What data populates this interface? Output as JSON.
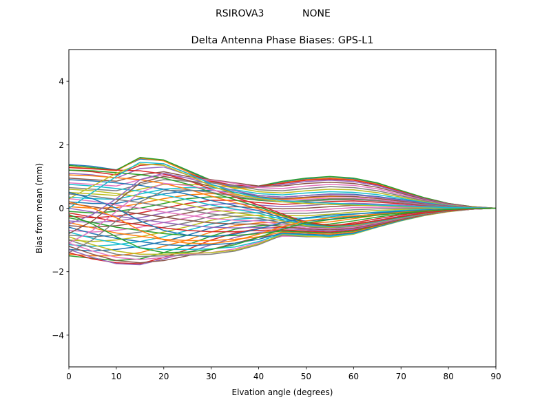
{
  "figure": {
    "suptitle_left": "RSIROVA3",
    "suptitle_right": "NONE"
  },
  "chart_data": {
    "type": "line",
    "title": "Delta Antenna Phase Biases: GPS-L1",
    "xlabel": "Elvation angle (degrees)",
    "ylabel": "Bias from mean (mm)",
    "xlim": [
      0,
      90
    ],
    "ylim": [
      -5,
      5
    ],
    "xticks": [
      0,
      10,
      20,
      30,
      40,
      50,
      60,
      70,
      80,
      90
    ],
    "yticks": [
      -4,
      -2,
      0,
      2,
      4
    ],
    "ytick_labels": [
      "−4",
      "−2",
      "0",
      "2",
      "4"
    ],
    "grid": false,
    "legend": "none",
    "x": [
      0,
      5,
      10,
      15,
      20,
      25,
      30,
      35,
      40,
      45,
      50,
      55,
      60,
      65,
      70,
      75,
      80,
      85,
      90
    ],
    "colors": [
      "#1f77b4",
      "#ff7f0e",
      "#2ca02c",
      "#d62728",
      "#9467bd",
      "#8c564b",
      "#e377c2",
      "#7f7f7f",
      "#bcbd22",
      "#17becf"
    ],
    "series": [
      {
        "values": [
          1.38,
          1.32,
          1.21,
          1.55,
          1.5,
          1.18,
          0.85,
          0.65,
          0.68,
          0.82,
          0.92,
          0.96,
          0.92,
          0.78,
          0.55,
          0.32,
          0.15,
          0.05,
          0.0
        ]
      },
      {
        "values": [
          1.3,
          1.25,
          1.18,
          1.58,
          1.49,
          1.15,
          0.82,
          0.62,
          0.66,
          0.8,
          0.9,
          0.95,
          0.9,
          0.76,
          0.53,
          0.31,
          0.14,
          0.05,
          0.0
        ]
      },
      {
        "values": [
          1.35,
          1.28,
          1.2,
          1.6,
          1.52,
          1.2,
          0.88,
          0.68,
          0.7,
          0.85,
          0.95,
          1.0,
          0.95,
          0.8,
          0.56,
          0.33,
          0.15,
          0.05,
          0.0
        ]
      },
      {
        "values": [
          1.2,
          1.15,
          1.05,
          1.35,
          1.4,
          1.1,
          0.85,
          0.72,
          0.7,
          0.78,
          0.88,
          0.92,
          0.88,
          0.74,
          0.52,
          0.3,
          0.14,
          0.04,
          0.0
        ]
      },
      {
        "values": [
          1.1,
          1.05,
          0.95,
          1.25,
          1.3,
          1.05,
          0.8,
          0.7,
          0.66,
          0.74,
          0.84,
          0.88,
          0.84,
          0.71,
          0.5,
          0.29,
          0.13,
          0.04,
          0.0
        ]
      },
      {
        "values": [
          0.95,
          0.9,
          0.85,
          1.05,
          1.15,
          1.0,
          0.9,
          0.8,
          0.7,
          0.7,
          0.78,
          0.82,
          0.78,
          0.66,
          0.47,
          0.27,
          0.12,
          0.04,
          0.0
        ]
      },
      {
        "values": [
          0.8,
          0.75,
          0.7,
          0.9,
          1.05,
          0.95,
          0.88,
          0.78,
          0.65,
          0.62,
          0.7,
          0.75,
          0.72,
          0.61,
          0.43,
          0.25,
          0.11,
          0.03,
          0.0
        ]
      },
      {
        "values": [
          0.65,
          0.6,
          0.55,
          0.75,
          0.9,
          0.85,
          0.8,
          0.72,
          0.58,
          0.55,
          0.62,
          0.68,
          0.65,
          0.55,
          0.39,
          0.23,
          0.1,
          0.03,
          0.0
        ]
      },
      {
        "values": [
          0.5,
          0.45,
          0.4,
          0.6,
          0.75,
          0.75,
          0.72,
          0.65,
          0.52,
          0.48,
          0.55,
          0.6,
          0.58,
          0.49,
          0.35,
          0.2,
          0.09,
          0.03,
          0.0
        ]
      },
      {
        "values": [
          0.35,
          0.3,
          0.28,
          0.45,
          0.6,
          0.65,
          0.64,
          0.58,
          0.46,
          0.42,
          0.48,
          0.52,
          0.5,
          0.43,
          0.31,
          0.18,
          0.08,
          0.02,
          0.0
        ]
      },
      {
        "values": [
          0.2,
          0.15,
          0.15,
          0.3,
          0.45,
          0.55,
          0.56,
          0.5,
          0.4,
          0.35,
          0.4,
          0.45,
          0.44,
          0.37,
          0.27,
          0.16,
          0.07,
          0.02,
          0.0
        ]
      },
      {
        "values": [
          0.05,
          0.0,
          0.02,
          0.15,
          0.3,
          0.42,
          0.46,
          0.42,
          0.32,
          0.28,
          0.32,
          0.37,
          0.37,
          0.31,
          0.22,
          0.13,
          0.06,
          0.02,
          0.0
        ]
      },
      {
        "values": [
          -0.1,
          -0.15,
          -0.1,
          0.0,
          0.15,
          0.3,
          0.36,
          0.34,
          0.25,
          0.2,
          0.24,
          0.29,
          0.3,
          0.25,
          0.18,
          0.11,
          0.05,
          0.01,
          0.0
        ]
      },
      {
        "values": [
          -0.25,
          -0.3,
          -0.25,
          -0.15,
          0.0,
          0.15,
          0.25,
          0.25,
          0.18,
          0.12,
          0.16,
          0.21,
          0.23,
          0.19,
          0.14,
          0.08,
          0.04,
          0.01,
          0.0
        ]
      },
      {
        "values": [
          -0.4,
          -0.45,
          -0.4,
          -0.3,
          -0.15,
          0.0,
          0.12,
          0.15,
          0.1,
          0.05,
          0.08,
          0.13,
          0.16,
          0.13,
          0.1,
          0.06,
          0.03,
          0.01,
          0.0
        ]
      },
      {
        "values": [
          -0.55,
          -0.6,
          -0.55,
          -0.45,
          -0.3,
          -0.15,
          0.0,
          0.05,
          0.02,
          -0.02,
          0.0,
          0.05,
          0.09,
          0.08,
          0.06,
          0.04,
          0.02,
          0.0,
          0.0
        ]
      },
      {
        "values": [
          -0.7,
          -0.75,
          -0.7,
          -0.6,
          -0.45,
          -0.3,
          -0.12,
          -0.05,
          -0.06,
          -0.09,
          -0.08,
          -0.03,
          0.02,
          0.03,
          0.03,
          0.02,
          0.01,
          0.0,
          0.0
        ]
      },
      {
        "values": [
          -0.85,
          -0.9,
          -0.85,
          -0.75,
          -0.6,
          -0.45,
          -0.25,
          -0.15,
          -0.14,
          -0.16,
          -0.16,
          -0.11,
          -0.05,
          -0.02,
          0.0,
          0.0,
          0.0,
          0.0,
          0.0
        ]
      },
      {
        "values": [
          -1.0,
          -1.05,
          -1.0,
          -0.9,
          -0.75,
          -0.58,
          -0.38,
          -0.25,
          -0.22,
          -0.23,
          -0.24,
          -0.19,
          -0.12,
          -0.07,
          -0.04,
          -0.02,
          -0.01,
          0.0,
          0.0
        ]
      },
      {
        "values": [
          -1.15,
          -1.2,
          -1.15,
          -1.05,
          -0.9,
          -0.7,
          -0.5,
          -0.35,
          -0.3,
          -0.3,
          -0.32,
          -0.27,
          -0.19,
          -0.12,
          -0.07,
          -0.04,
          -0.02,
          0.0,
          0.0
        ]
      },
      {
        "values": [
          -1.3,
          -1.35,
          -1.3,
          -1.2,
          -1.05,
          -0.85,
          -0.62,
          -0.45,
          -0.38,
          -0.37,
          -0.4,
          -0.35,
          -0.26,
          -0.17,
          -0.1,
          -0.06,
          -0.03,
          -0.01,
          0.0
        ]
      },
      {
        "values": [
          -1.45,
          -1.5,
          -1.5,
          -1.4,
          -1.2,
          -1.0,
          -0.75,
          -0.55,
          -0.46,
          -0.44,
          -0.48,
          -0.43,
          -0.33,
          -0.22,
          -0.14,
          -0.08,
          -0.04,
          -0.01,
          0.0
        ]
      },
      {
        "values": [
          -1.5,
          -1.58,
          -1.65,
          -1.6,
          -1.4,
          -1.15,
          -0.88,
          -0.66,
          -0.55,
          -0.52,
          -0.55,
          -0.5,
          -0.4,
          -0.28,
          -0.18,
          -0.1,
          -0.05,
          -0.02,
          0.0
        ]
      },
      {
        "values": [
          -1.4,
          -1.6,
          -1.72,
          -1.75,
          -1.55,
          -1.3,
          -1.0,
          -0.78,
          -0.64,
          -0.6,
          -0.63,
          -0.57,
          -0.46,
          -0.33,
          -0.21,
          -0.12,
          -0.06,
          -0.02,
          0.0
        ]
      },
      {
        "values": [
          -1.3,
          -1.55,
          -1.75,
          -1.78,
          -1.6,
          -1.4,
          -1.15,
          -0.92,
          -0.76,
          -0.7,
          -0.72,
          -0.66,
          -0.53,
          -0.38,
          -0.25,
          -0.14,
          -0.07,
          -0.02,
          0.0
        ]
      },
      {
        "values": [
          -1.2,
          -1.45,
          -1.65,
          -1.72,
          -1.65,
          -1.5,
          -1.3,
          -1.1,
          -0.92,
          -0.82,
          -0.82,
          -0.74,
          -0.6,
          -0.44,
          -0.29,
          -0.16,
          -0.08,
          -0.02,
          0.0
        ]
      },
      {
        "values": [
          -1.1,
          -1.35,
          -1.55,
          -1.62,
          -1.55,
          -1.45,
          -1.4,
          -1.28,
          -1.08,
          -0.88,
          -0.88,
          -0.82,
          -0.67,
          -0.49,
          -0.33,
          -0.19,
          -0.09,
          -0.03,
          0.0
        ]
      },
      {
        "values": [
          -1.0,
          -1.25,
          -1.45,
          -1.52,
          -1.5,
          -1.48,
          -1.45,
          -1.35,
          -1.15,
          -0.85,
          -0.9,
          -0.9,
          -0.75,
          -0.55,
          -0.37,
          -0.21,
          -0.1,
          -0.03,
          0.0
        ]
      },
      {
        "values": [
          -0.9,
          -1.15,
          -1.35,
          -1.45,
          -1.45,
          -1.42,
          -1.4,
          -1.32,
          -1.12,
          -0.82,
          -0.88,
          -0.92,
          -0.82,
          -0.6,
          -0.4,
          -0.23,
          -0.11,
          -0.03,
          0.0
        ]
      },
      {
        "values": [
          -0.75,
          -0.95,
          -1.1,
          -1.25,
          -1.3,
          -1.3,
          -1.28,
          -1.22,
          -1.05,
          -0.8,
          -0.85,
          -0.88,
          -0.8,
          -0.59,
          -0.39,
          -0.22,
          -0.1,
          -0.03,
          0.0
        ]
      },
      {
        "values": [
          -0.6,
          -0.8,
          -0.95,
          -1.05,
          -1.15,
          -1.18,
          -1.15,
          -1.1,
          -0.98,
          -0.78,
          -0.82,
          -0.85,
          -0.78,
          -0.58,
          -0.38,
          -0.21,
          -0.1,
          -0.03,
          0.0
        ]
      },
      {
        "values": [
          -0.45,
          -0.62,
          -0.78,
          -0.88,
          -0.98,
          -1.02,
          -1.02,
          -0.98,
          -0.9,
          -0.75,
          -0.78,
          -0.82,
          -0.75,
          -0.56,
          -0.37,
          -0.21,
          -0.1,
          -0.03,
          0.0
        ]
      },
      {
        "values": [
          -0.3,
          -0.45,
          -0.6,
          -0.7,
          -0.8,
          -0.86,
          -0.88,
          -0.86,
          -0.8,
          -0.72,
          -0.75,
          -0.78,
          -0.72,
          -0.54,
          -0.36,
          -0.2,
          -0.09,
          -0.03,
          0.0
        ]
      },
      {
        "values": [
          -0.15,
          -0.28,
          -0.42,
          -0.52,
          -0.62,
          -0.7,
          -0.74,
          -0.74,
          -0.7,
          -0.68,
          -0.72,
          -0.75,
          -0.69,
          -0.52,
          -0.35,
          -0.2,
          -0.09,
          -0.03,
          0.0
        ]
      },
      {
        "values": [
          0.0,
          -0.12,
          -0.25,
          -0.35,
          -0.45,
          -0.54,
          -0.6,
          -0.62,
          -0.6,
          -0.64,
          -0.68,
          -0.72,
          -0.66,
          -0.5,
          -0.34,
          -0.19,
          -0.09,
          -0.03,
          0.0
        ]
      },
      {
        "values": [
          0.15,
          0.05,
          -0.08,
          -0.18,
          -0.28,
          -0.38,
          -0.46,
          -0.5,
          -0.5,
          -0.58,
          -0.65,
          -0.68,
          -0.63,
          -0.48,
          -0.33,
          -0.19,
          -0.09,
          -0.03,
          0.0
        ]
      },
      {
        "values": [
          0.3,
          0.22,
          0.1,
          0.0,
          -0.12,
          -0.22,
          -0.32,
          -0.38,
          -0.4,
          -0.52,
          -0.62,
          -0.65,
          -0.6,
          -0.46,
          -0.32,
          -0.18,
          -0.08,
          -0.03,
          0.0
        ]
      },
      {
        "values": [
          0.45,
          0.38,
          0.28,
          0.18,
          0.06,
          -0.06,
          -0.18,
          -0.26,
          -0.32,
          -0.46,
          -0.58,
          -0.62,
          -0.57,
          -0.44,
          -0.31,
          -0.18,
          -0.08,
          -0.02,
          0.0
        ]
      },
      {
        "values": [
          0.6,
          0.55,
          0.46,
          0.36,
          0.24,
          0.1,
          -0.04,
          -0.14,
          -0.24,
          -0.4,
          -0.55,
          -0.6,
          -0.55,
          -0.43,
          -0.3,
          -0.17,
          -0.08,
          -0.02,
          0.0
        ]
      },
      {
        "values": [
          0.75,
          0.7,
          0.62,
          0.54,
          0.42,
          0.27,
          0.1,
          -0.03,
          -0.16,
          -0.35,
          -0.52,
          -0.58,
          -0.53,
          -0.42,
          -0.29,
          -0.17,
          -0.08,
          -0.02,
          0.0
        ]
      },
      {
        "values": [
          0.9,
          0.86,
          0.8,
          0.72,
          0.6,
          0.44,
          0.24,
          0.08,
          -0.08,
          -0.3,
          -0.5,
          -0.56,
          -0.52,
          -0.41,
          -0.28,
          -0.16,
          -0.07,
          -0.02,
          0.0
        ]
      },
      {
        "values": [
          1.05,
          1.02,
          0.96,
          0.9,
          0.78,
          0.6,
          0.38,
          0.18,
          -0.02,
          -0.25,
          -0.47,
          -0.55,
          -0.51,
          -0.4,
          -0.27,
          -0.16,
          -0.07,
          -0.02,
          0.0
        ]
      },
      {
        "values": [
          1.2,
          1.18,
          1.12,
          1.06,
          0.95,
          0.76,
          0.5,
          0.27,
          0.04,
          -0.22,
          -0.46,
          -0.55,
          -0.5,
          -0.39,
          -0.27,
          -0.15,
          -0.07,
          -0.02,
          0.0
        ]
      },
      {
        "values": [
          1.28,
          1.24,
          1.2,
          1.18,
          1.08,
          0.88,
          0.6,
          0.35,
          0.1,
          -0.18,
          -0.44,
          -0.54,
          -0.5,
          -0.39,
          -0.26,
          -0.15,
          -0.07,
          -0.02,
          0.0
        ]
      },
      {
        "values": [
          -0.5,
          -0.2,
          0.3,
          0.9,
          1.1,
          0.95,
          0.75,
          0.55,
          0.4,
          0.35,
          0.4,
          0.44,
          0.42,
          0.35,
          0.25,
          0.15,
          0.07,
          0.02,
          0.0
        ]
      },
      {
        "values": [
          -0.8,
          -0.4,
          0.2,
          0.8,
          1.0,
          0.88,
          0.68,
          0.5,
          0.36,
          0.3,
          0.35,
          0.39,
          0.37,
          0.31,
          0.22,
          0.13,
          0.06,
          0.02,
          0.0
        ]
      },
      {
        "values": [
          -1.1,
          -0.7,
          -0.1,
          0.5,
          0.78,
          0.72,
          0.58,
          0.44,
          0.32,
          0.25,
          0.28,
          0.32,
          0.32,
          0.27,
          0.19,
          0.11,
          0.05,
          0.01,
          0.0
        ]
      },
      {
        "values": [
          -1.4,
          -1.0,
          -0.4,
          0.2,
          0.55,
          0.58,
          0.5,
          0.38,
          0.27,
          0.2,
          0.22,
          0.26,
          0.27,
          0.23,
          0.17,
          0.1,
          0.05,
          0.01,
          0.0
        ]
      },
      {
        "values": [
          0.3,
          0.7,
          1.1,
          1.4,
          1.35,
          1.05,
          0.7,
          0.45,
          0.3,
          0.2,
          0.15,
          0.12,
          0.1,
          0.08,
          0.05,
          0.03,
          0.01,
          0.0,
          0.0
        ]
      },
      {
        "values": [
          0.0,
          0.5,
          1.0,
          1.45,
          1.4,
          1.1,
          0.76,
          0.5,
          0.34,
          0.24,
          0.19,
          0.16,
          0.13,
          0.1,
          0.07,
          0.04,
          0.02,
          0.01,
          0.0
        ]
      },
      {
        "values": [
          0.5,
          0.3,
          0.0,
          -0.4,
          -0.7,
          -0.85,
          -0.9,
          -0.82,
          -0.65,
          -0.45,
          -0.3,
          -0.22,
          -0.18,
          -0.14,
          -0.1,
          -0.06,
          -0.03,
          -0.01,
          0.0
        ]
      },
      {
        "values": [
          0.2,
          0.0,
          -0.3,
          -0.7,
          -1.0,
          -1.1,
          -1.12,
          -1.02,
          -0.82,
          -0.58,
          -0.4,
          -0.3,
          -0.24,
          -0.19,
          -0.13,
          -0.08,
          -0.04,
          -0.01,
          0.0
        ]
      },
      {
        "values": [
          -0.2,
          -0.5,
          -0.9,
          -1.25,
          -1.4,
          -1.38,
          -1.3,
          -1.15,
          -0.92,
          -0.66,
          -0.46,
          -0.36,
          -0.29,
          -0.22,
          -0.15,
          -0.09,
          -0.04,
          -0.01,
          0.0
        ]
      }
    ]
  }
}
